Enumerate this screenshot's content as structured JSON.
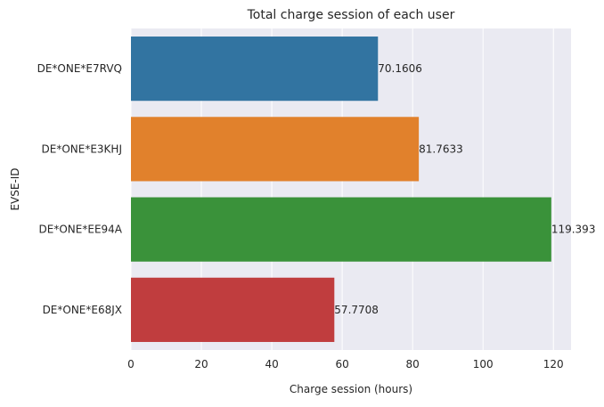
{
  "chart_data": {
    "type": "bar",
    "orientation": "horizontal",
    "title": "Total charge session of each user",
    "xlabel": "Charge session (hours)",
    "ylabel": "EVSE-ID",
    "categories": [
      "DE*ONE*E7RVQ",
      "DE*ONE*E3KHJ",
      "DE*ONE*EE94A",
      "DE*ONE*E68JX"
    ],
    "values": [
      70.1606,
      81.7633,
      119.393,
      57.7708
    ],
    "value_labels": [
      "70.1606",
      "81.7633",
      "119.393",
      "57.7708"
    ],
    "xlim": [
      0,
      125
    ],
    "xticks": [
      0,
      20,
      40,
      60,
      80,
      100,
      120
    ],
    "xtick_labels": [
      "0",
      "20",
      "40",
      "60",
      "80",
      "100",
      "120"
    ],
    "colors": [
      "#3274a1",
      "#e1812c",
      "#3a923a",
      "#c03d3e"
    ],
    "background": "#eaeaf2",
    "grid": true
  }
}
